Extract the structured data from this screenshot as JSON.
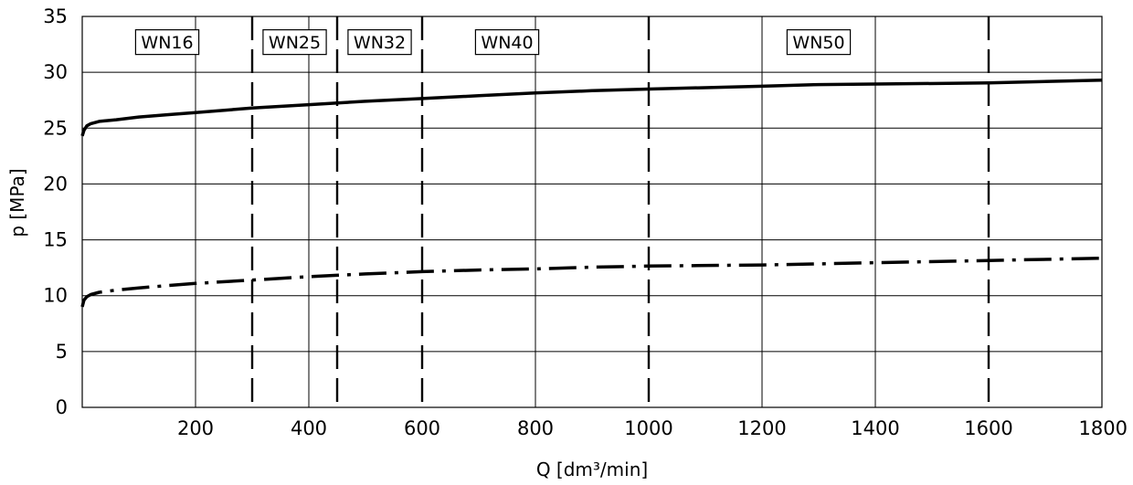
{
  "chart_data": {
    "type": "line",
    "xlabel": "Q [dm³/min]",
    "ylabel": "p [MPa]",
    "y_ticks": [
      "0",
      "5",
      "10",
      "15",
      "20",
      "25",
      "30",
      "35"
    ],
    "x_ticks": [
      "200",
      "400",
      "600",
      "800",
      "1000",
      "1200",
      "1400",
      "1600",
      "1800"
    ],
    "x_axis_note": "x axis is piecewise linear: 9 equal intervals labelled 0,200,400,600,800,1000,1200,1400,1600,1800",
    "x_axis_breakpoints": [
      0,
      200,
      400,
      600,
      800,
      1000,
      1200,
      1400,
      1600,
      1800
    ],
    "ylim": [
      0,
      35
    ],
    "grid": true,
    "size_boundaries": [
      300,
      450,
      600,
      1000,
      1600
    ],
    "zones": [
      {
        "label": "WN16",
        "x_center": 150
      },
      {
        "label": "WN25",
        "x_center": 375
      },
      {
        "label": "WN32",
        "x_center": 525
      },
      {
        "label": "WN40",
        "x_center": 750
      },
      {
        "label": "WN50",
        "x_center": 1300
      }
    ],
    "series": [
      {
        "style": "solid",
        "x": [
          0,
          3,
          8,
          15,
          30,
          60,
          100,
          150,
          200,
          300,
          400,
          500,
          600,
          700,
          800,
          900,
          1000,
          1200,
          1300,
          1400,
          1600,
          1800
        ],
        "y": [
          24.3,
          24.8,
          25.2,
          25.4,
          25.6,
          25.75,
          26.0,
          26.2,
          26.4,
          26.8,
          27.1,
          27.4,
          27.65,
          27.9,
          28.15,
          28.35,
          28.5,
          28.75,
          28.9,
          28.95,
          29.05,
          29.3
        ]
      },
      {
        "style": "dash-dot",
        "x": [
          0,
          3,
          8,
          15,
          30,
          60,
          100,
          150,
          200,
          300,
          400,
          500,
          600,
          700,
          800,
          900,
          1000,
          1200,
          1300,
          1400,
          1600,
          1800
        ],
        "y": [
          9.0,
          9.6,
          9.9,
          10.1,
          10.3,
          10.5,
          10.7,
          10.9,
          11.1,
          11.4,
          11.7,
          11.95,
          12.15,
          12.3,
          12.4,
          12.55,
          12.65,
          12.75,
          12.85,
          12.95,
          13.15,
          13.35
        ]
      }
    ]
  }
}
